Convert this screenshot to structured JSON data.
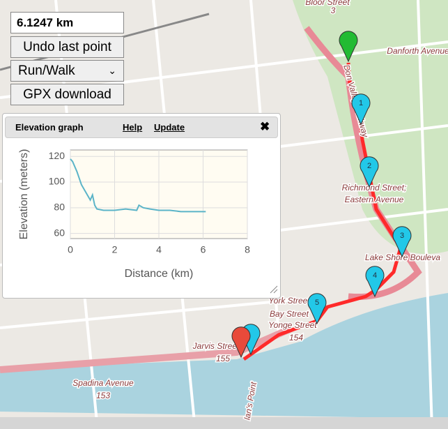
{
  "controls": {
    "distance": "6.1247 km",
    "undo": "Undo last point",
    "mode": "Run/Walk",
    "gpx": "GPX download"
  },
  "dialog": {
    "title": "Elevation graph",
    "help": "Help",
    "update": "Update",
    "close": "✖"
  },
  "chart_data": {
    "type": "line",
    "x_label": "Distance (km)",
    "y_label": "Elevation (meters)",
    "x": [
      0,
      0.1,
      0.3,
      0.5,
      0.7,
      0.9,
      1.0,
      1.1,
      1.2,
      1.5,
      2,
      2.5,
      3.0,
      3.1,
      3.3,
      3.6,
      4,
      4.5,
      5,
      5.5,
      6.12
    ],
    "series": [
      {
        "color": "#5bb4c8",
        "values": [
          118,
          116,
          108,
          98,
          92,
          86,
          90,
          82,
          79,
          78,
          78,
          79,
          78,
          82,
          80,
          79,
          78,
          78,
          77,
          77,
          77
        ]
      }
    ],
    "xlim": [
      0,
      8
    ],
    "ylim": [
      56,
      125
    ],
    "xticks": [
      0,
      2,
      4,
      6,
      8
    ],
    "yticks": [
      60,
      80,
      100,
      120
    ],
    "grid": true
  },
  "map": {
    "labels": [
      "Bloor Street",
      "3",
      "Danforth Avenue",
      "Don Valley Parkway",
      "Richmond Street;",
      "Eastern Avenue",
      "Lake Shore Bouleva",
      "York Street",
      "Bay Street",
      "Yonge Street",
      "154",
      "Jarvis Street",
      "155",
      "Spadina Avenue",
      "153",
      "lan's Point"
    ],
    "markers": [
      "1",
      "2",
      "3",
      "4",
      "5"
    ]
  }
}
